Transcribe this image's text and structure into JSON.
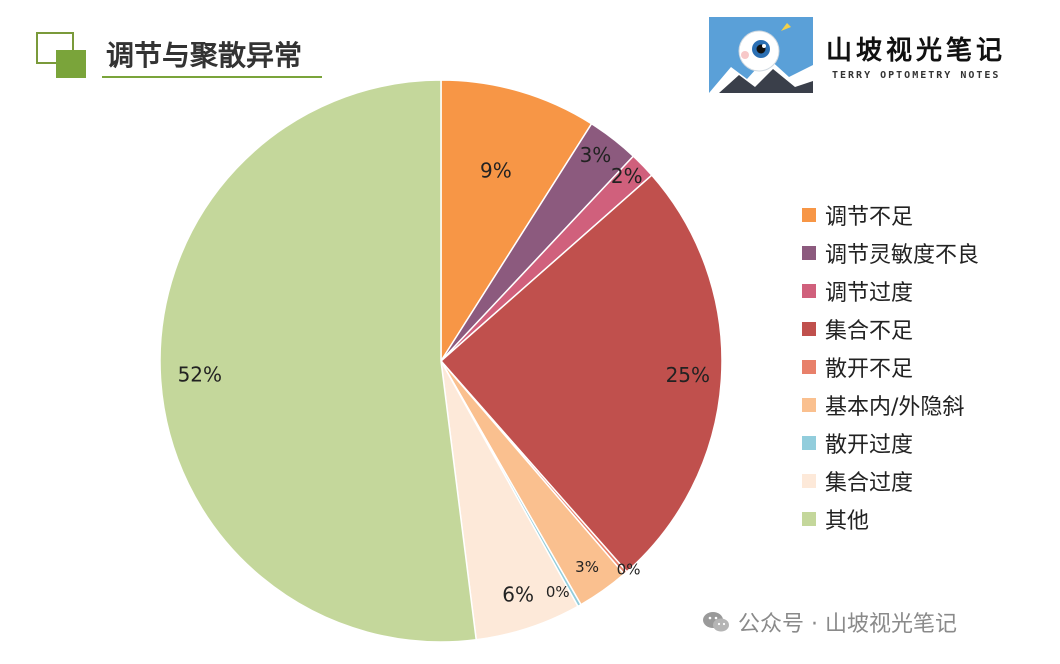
{
  "header": {
    "title": "调节与聚散异常"
  },
  "logo": {
    "name": "山坡视光笔记",
    "subtitle": "TERRY OPTOMETRY NOTES",
    "bg_color": "#5aa0d8",
    "icon": "eyeball-mascot-icon"
  },
  "watermark": {
    "text": "公众号 · 山坡视光笔记",
    "icon": "wechat-icon"
  },
  "chart_data": {
    "type": "pie",
    "title": "",
    "start_angle_deg": 0,
    "direction": "clockwise",
    "legend_position": "right",
    "series": [
      {
        "name": "调节不足",
        "value": 9,
        "label": "9%",
        "color": "#f79646"
      },
      {
        "name": "调节灵敏度不良",
        "value": 3,
        "label": "3%",
        "color": "#8c5a7e"
      },
      {
        "name": "调节过度",
        "value": 1.5,
        "label": "2%",
        "color": "#d0607c"
      },
      {
        "name": "集合不足",
        "value": 25,
        "label": "25%",
        "color": "#c0504d"
      },
      {
        "name": "散开不足",
        "value": 0.2,
        "label": "0%",
        "color": "#e8806a"
      },
      {
        "name": "基本内/外隐斜",
        "value": 3,
        "label": "3%",
        "color": "#fac08f"
      },
      {
        "name": "散开过度",
        "value": 0.2,
        "label": "0%",
        "color": "#92cddc"
      },
      {
        "name": "集合过度",
        "value": 6.1,
        "label": "6%",
        "color": "#fde9d9"
      },
      {
        "name": "其他",
        "value": 52,
        "label": "52%",
        "color": "#c4d79b"
      }
    ]
  }
}
